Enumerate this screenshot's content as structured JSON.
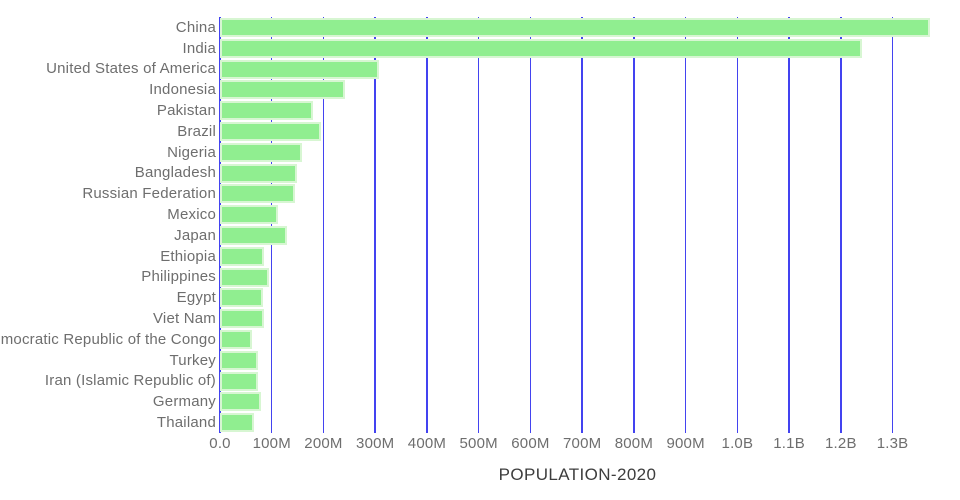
{
  "chart_data": {
    "type": "bar",
    "orientation": "horizontal",
    "title": "POPULATION-2020",
    "categories": [
      "China",
      "India",
      "United States of America",
      "Indonesia",
      "Pakistan",
      "Brazil",
      "Nigeria",
      "Bangladesh",
      "Russian Federation",
      "Mexico",
      "Japan",
      "Ethiopia",
      "Philippines",
      "Egypt",
      "Viet Nam",
      "Democratic Republic of the Congo",
      "Turkey",
      "Iran (Islamic Republic of)",
      "Germany",
      "Thailand"
    ],
    "values": [
      1373,
      1241,
      308,
      242,
      179,
      195,
      159,
      148,
      145,
      113,
      129,
      86,
      95,
      83,
      86,
      61,
      73,
      74,
      79,
      66
    ],
    "values_unit": "millions of people",
    "xlabel": "",
    "ylabel": "",
    "xlim_millions": [
      0,
      1382
    ],
    "x_ticks": {
      "values": [
        0,
        100,
        200,
        300,
        400,
        500,
        600,
        700,
        800,
        900,
        1000,
        1100,
        1200,
        1300
      ],
      "labels": [
        "0.0",
        "100M",
        "200M",
        "300M",
        "400M",
        "500M",
        "600M",
        "700M",
        "800M",
        "900M",
        "1.0B",
        "1.1B",
        "1.2B",
        "1.3B"
      ]
    },
    "grid": "vertical",
    "legend": "none"
  },
  "colors": {
    "bar_fill": "#90ee90",
    "bar_edge": "#d7f6d2",
    "gridline": "#4343f0",
    "label_text": "#6e6e6e",
    "tick_text": "#6e6e6e",
    "title_text": "#3d3d3d",
    "background": "#ffffff"
  }
}
